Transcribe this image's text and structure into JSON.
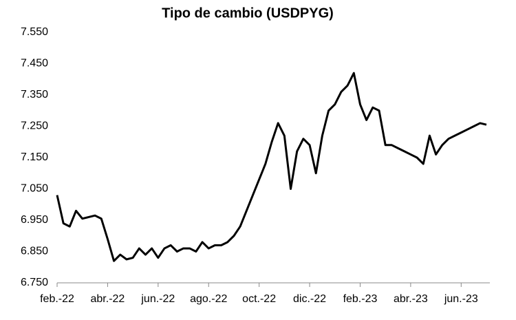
{
  "chart_data": {
    "type": "line",
    "title": "Tipo de cambio (USDPYG)",
    "categories": [
      "feb.-22",
      null,
      null,
      null,
      null,
      null,
      null,
      null,
      "abr.-22",
      null,
      null,
      null,
      null,
      null,
      null,
      null,
      "jun.-22",
      null,
      null,
      null,
      null,
      null,
      null,
      null,
      "ago.-22",
      null,
      null,
      null,
      null,
      null,
      null,
      null,
      "oct.-22",
      null,
      null,
      null,
      null,
      null,
      null,
      null,
      "dic.-22",
      null,
      null,
      null,
      null,
      null,
      null,
      null,
      "feb.-23",
      null,
      null,
      null,
      null,
      null,
      null,
      null,
      "abr.-23",
      null,
      null,
      null,
      null,
      null,
      null,
      null,
      "jun.-23",
      null,
      null,
      null,
      null
    ],
    "series": [
      {
        "name": "USDPYG",
        "color": "#000000",
        "values": [
          7.03,
          6.94,
          6.93,
          6.98,
          6.955,
          6.96,
          6.965,
          6.955,
          6.89,
          6.82,
          6.84,
          6.825,
          6.83,
          6.86,
          6.84,
          6.86,
          6.83,
          6.86,
          6.87,
          6.85,
          6.86,
          6.86,
          6.85,
          6.88,
          6.86,
          6.87,
          6.87,
          6.88,
          6.9,
          6.93,
          6.98,
          7.03,
          7.08,
          7.13,
          7.2,
          7.26,
          7.22,
          7.05,
          7.17,
          7.21,
          7.19,
          7.1,
          7.22,
          7.3,
          7.32,
          7.36,
          7.38,
          7.42,
          7.32,
          7.27,
          7.31,
          7.3,
          7.19,
          7.19,
          7.18,
          7.17,
          7.16,
          7.15,
          7.13,
          7.22,
          7.16,
          7.19,
          7.21,
          7.22,
          7.23,
          7.24,
          7.25,
          7.26,
          7.255
        ]
      }
    ],
    "ylim": [
      6.75,
      7.55
    ],
    "yticks": [
      {
        "value": 6.75,
        "label": "6.750"
      },
      {
        "value": 6.85,
        "label": "6.850"
      },
      {
        "value": 6.95,
        "label": "6.950"
      },
      {
        "value": 7.05,
        "label": "7.050"
      },
      {
        "value": 7.15,
        "label": "7.150"
      },
      {
        "value": 7.25,
        "label": "7.250"
      },
      {
        "value": 7.35,
        "label": "7.350"
      },
      {
        "value": 7.45,
        "label": "7.450"
      },
      {
        "value": 7.55,
        "label": "7.550"
      }
    ],
    "grid": false
  }
}
